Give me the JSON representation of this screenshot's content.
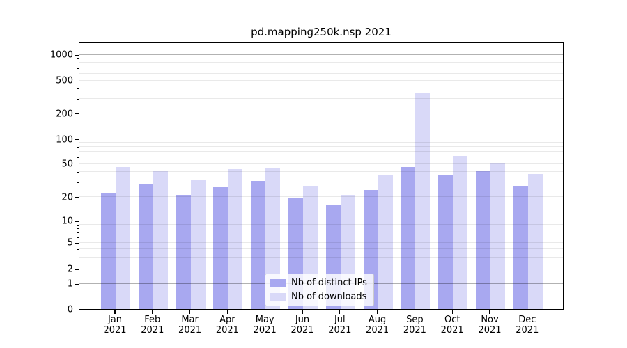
{
  "chart_data": {
    "type": "bar",
    "title": "pd.mapping250k.nsp 2021",
    "categories": [
      "Jan",
      "Feb",
      "Mar",
      "Apr",
      "May",
      "Jun",
      "Jul",
      "Aug",
      "Sep",
      "Oct",
      "Nov",
      "Dec"
    ],
    "year_label": "2021",
    "series": [
      {
        "name": "Nb of distinct IPs",
        "color": "#a8a8f0",
        "values": [
          22,
          28,
          21,
          26,
          31,
          19,
          16,
          24,
          45,
          36,
          40,
          27
        ]
      },
      {
        "name": "Nb of downloads",
        "color": "#d9d9f8",
        "values": [
          45,
          40,
          32,
          43,
          44,
          27,
          21,
          36,
          350,
          62,
          51,
          37
        ]
      }
    ],
    "xlabel": "",
    "ylabel": "",
    "yscale": "symlog",
    "y_ticks": [
      0,
      1,
      2,
      5,
      10,
      20,
      50,
      100,
      200,
      500,
      1000
    ],
    "ylim": [
      0,
      1400
    ],
    "grid": "on",
    "legend_position": "lower-center",
    "colors": {
      "major_grid": "#b2b2b2",
      "minor_grid": "#e9e9e9",
      "spine": "#000000",
      "text": "#000000",
      "background": "#ffffff"
    }
  }
}
